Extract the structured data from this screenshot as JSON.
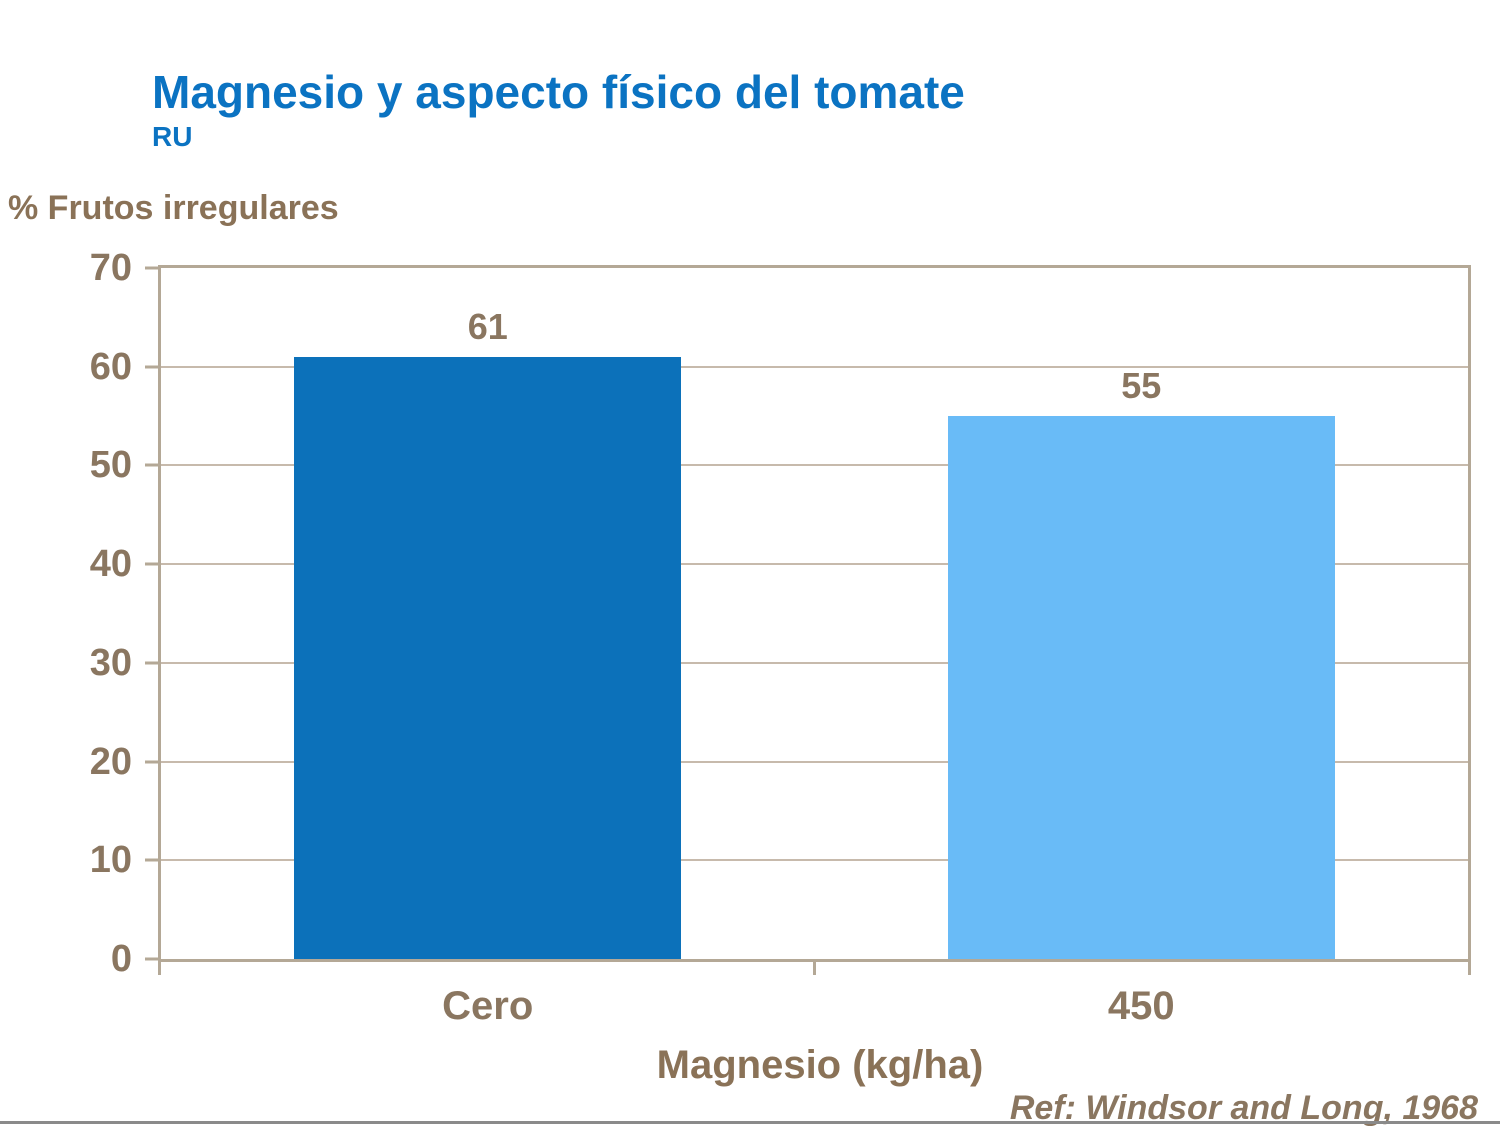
{
  "header": {
    "title": "Magnesio y aspecto físico del tomate",
    "subtitle": "RU"
  },
  "chart_data": {
    "type": "bar",
    "heading_left": "% Frutos irregulares",
    "xlabel": "Magnesio (kg/ha)",
    "categories": [
      "Cero",
      "450"
    ],
    "values": [
      61,
      55
    ],
    "bar_colors": [
      "#0C71BA",
      "#69BBF7"
    ],
    "ylim": [
      0,
      70
    ],
    "yticks": [
      0,
      10,
      20,
      30,
      40,
      50,
      60,
      70
    ],
    "grid": true,
    "legend_position": "none"
  },
  "footer": {
    "reference": "Ref: Windsor and Long, 1968"
  },
  "colors": {
    "title_blue": "#0B73C2",
    "text_brown": "#8A7660",
    "plot_border": "#B4A896",
    "gridline": "#C7BAAC",
    "bottom_rule_gray": "#8A8A8A"
  }
}
